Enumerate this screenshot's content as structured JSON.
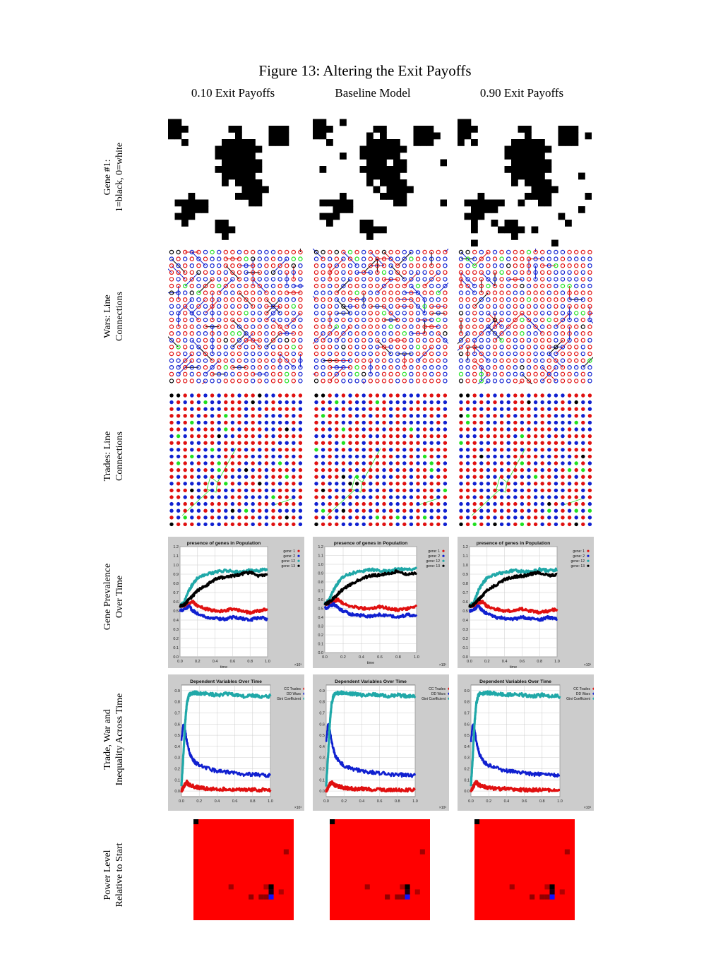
{
  "figure": {
    "title": "Figure 13: Altering the Exit Payoffs",
    "columns": [
      "0.10 Exit Payoffs",
      "Baseline Model",
      "0.90 Exit Payoffs"
    ],
    "rows": [
      {
        "label_lines": [
          "Gene #1:",
          "1=black, 0=white"
        ]
      },
      {
        "label_lines": [
          "Wars: Line",
          "Connections"
        ]
      },
      {
        "label_lines": [
          "Trades: Line",
          "Connections"
        ]
      },
      {
        "label_lines": [
          "Gene Prevalence",
          "Over Time"
        ]
      },
      {
        "label_lines": [
          "Trade, War and",
          "Inequality Across Time"
        ]
      },
      {
        "label_lines": [
          "Power Level",
          "Relative to Start"
        ]
      }
    ]
  },
  "colors": {
    "red": "#e01010",
    "blue": "#1020d0",
    "teal": "#20a8a8",
    "green": "#20e020",
    "black": "#000000",
    "panel_gray": "#cccccc",
    "power_red": "#ff0000"
  },
  "chart_data": [
    {
      "type": "line",
      "title": "presence of genes in Population",
      "xlabel": "time",
      "x_multiplier": "×10³",
      "xlim": [
        0,
        1.0
      ],
      "ylim": [
        0,
        1.2
      ],
      "x_ticks": [
        "0.0",
        "0.2",
        "0.4",
        "0.6",
        "0.8",
        "1.0"
      ],
      "y_ticks": [
        "0.0",
        "0.1",
        "0.2",
        "0.3",
        "0.4",
        "0.5",
        "0.6",
        "0.7",
        "0.8",
        "0.9",
        "1.0",
        "1.1",
        "1.2"
      ],
      "legend_position": "top-right",
      "grid": true,
      "x": [
        0.0,
        0.05,
        0.1,
        0.15,
        0.2,
        0.3,
        0.4,
        0.5,
        0.6,
        0.7,
        0.8,
        0.9,
        1.0
      ],
      "series": [
        {
          "name": "gene: 1",
          "color": "#e01010",
          "values": [
            0.55,
            0.56,
            0.58,
            0.6,
            0.55,
            0.52,
            0.5,
            0.5,
            0.52,
            0.5,
            0.48,
            0.5,
            0.52
          ]
        },
        {
          "name": "gene: 2",
          "color": "#1020d0",
          "values": [
            0.5,
            0.52,
            0.55,
            0.5,
            0.47,
            0.43,
            0.42,
            0.41,
            0.43,
            0.42,
            0.4,
            0.43,
            0.41
          ]
        },
        {
          "name": "gene: 12",
          "color": "#20a8a8",
          "values": [
            0.55,
            0.6,
            0.72,
            0.8,
            0.86,
            0.9,
            0.92,
            0.94,
            0.93,
            0.92,
            0.95,
            0.94,
            0.95
          ]
        },
        {
          "name": "gene: 13",
          "color": "#000000",
          "values": [
            0.55,
            0.57,
            0.62,
            0.67,
            0.72,
            0.78,
            0.84,
            0.87,
            0.88,
            0.9,
            0.92,
            0.88,
            0.9
          ]
        }
      ]
    },
    {
      "type": "line",
      "title": "Dependent Variables Over Time",
      "x_multiplier": "×10³",
      "xlim": [
        0,
        1.0
      ],
      "ylim": [
        -0.05,
        0.95
      ],
      "x_ticks": [
        "0.0",
        "0.2",
        "0.4",
        "0.6",
        "0.8",
        "1.0"
      ],
      "y_ticks": [
        "0.0",
        "0.1",
        "0.2",
        "0.3",
        "0.4",
        "0.5",
        "0.6",
        "0.7",
        "0.8",
        "0.9"
      ],
      "legend_position": "top-right",
      "grid": true,
      "x": [
        0.0,
        0.02,
        0.04,
        0.06,
        0.08,
        0.1,
        0.15,
        0.2,
        0.3,
        0.4,
        0.5,
        0.6,
        0.7,
        0.8,
        0.9,
        1.0
      ],
      "series": [
        {
          "name": "CC Trades",
          "color": "#e01010",
          "marker": "dot",
          "values": [
            0.0,
            0.03,
            0.06,
            0.08,
            0.06,
            0.05,
            0.04,
            0.03,
            0.02,
            0.02,
            0.015,
            0.01,
            0.01,
            0.01,
            0.01,
            0.01
          ]
        },
        {
          "name": "DD Wars",
          "color": "#1020d0",
          "marker": "x",
          "values": [
            0.45,
            0.6,
            0.55,
            0.45,
            0.38,
            0.32,
            0.26,
            0.23,
            0.2,
            0.18,
            0.17,
            0.16,
            0.15,
            0.15,
            0.14,
            0.14
          ]
        },
        {
          "name": "Gini Coefficient",
          "color": "#20a8a8",
          "marker": "square",
          "values": [
            0.05,
            0.3,
            0.6,
            0.78,
            0.85,
            0.87,
            0.88,
            0.88,
            0.87,
            0.86,
            0.87,
            0.86,
            0.85,
            0.86,
            0.85,
            0.85
          ]
        }
      ]
    }
  ]
}
